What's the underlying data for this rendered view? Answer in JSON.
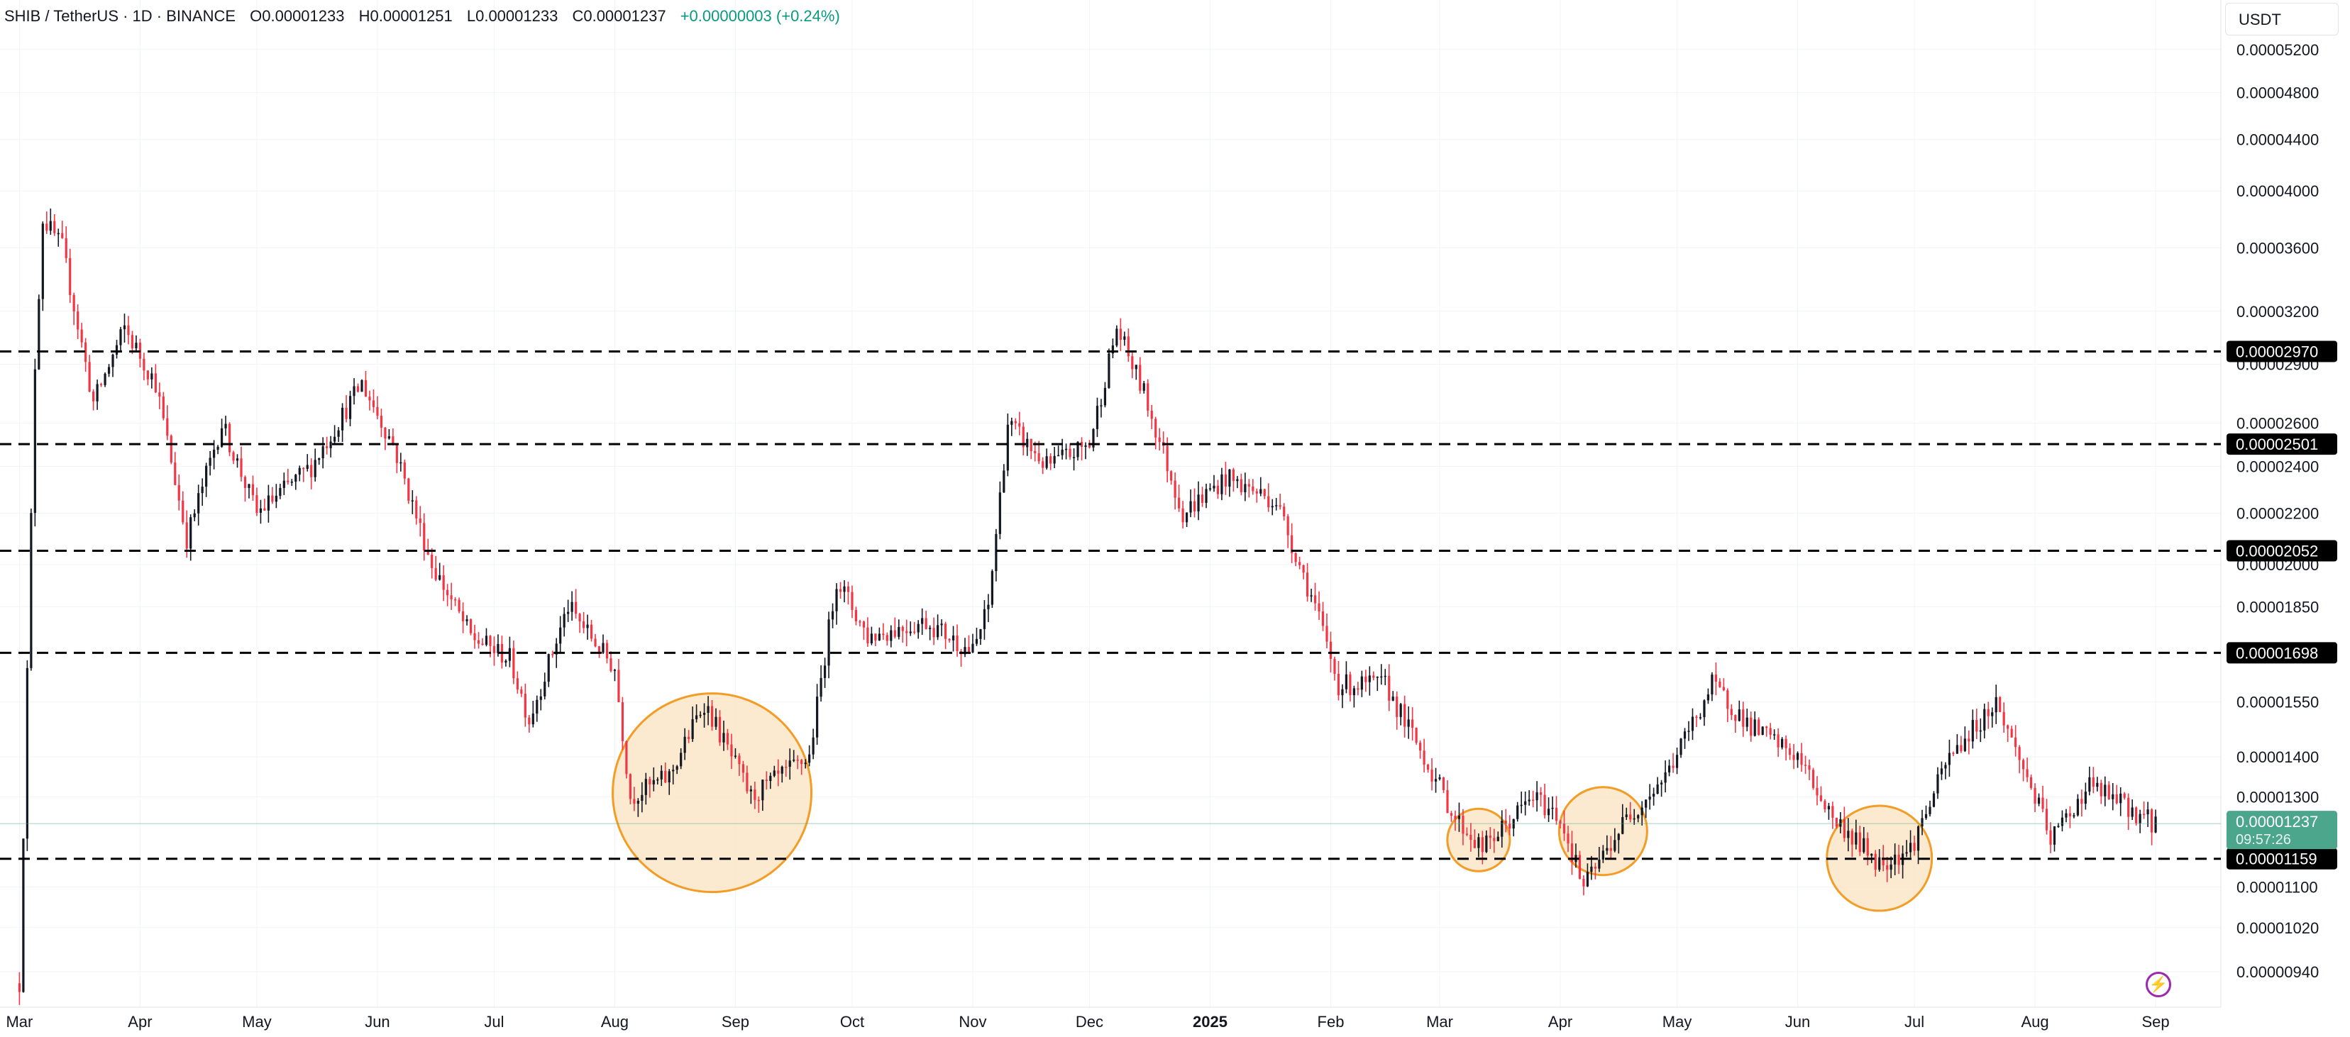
{
  "header": {
    "symbol": "SHIB / TetherUS · 1D · BINANCE",
    "open": "O0.00001233",
    "high": "H0.00001251",
    "low": "L0.00001233",
    "close": "C0.00001237",
    "change": "+0.00000003 (+0.24%)"
  },
  "scale_unit": "USDT",
  "icons": {
    "replay": "lightning-icon"
  },
  "colors": {
    "up": "#089981",
    "down": "#f23645",
    "candle": "#131722",
    "level_line": "#000000",
    "circle_stroke": "#f39c26",
    "circle_fill": "#fbe3c0",
    "last_price_bg": "#4ba68b"
  },
  "chart_data": {
    "type": "candlestick",
    "scale": "log",
    "ylim": [
      8.8e-06,
      5.7e-05
    ],
    "x_ticks": [
      "Mar",
      "Apr",
      "May",
      "Jun",
      "Jul",
      "Aug",
      "Sep",
      "Oct",
      "Nov",
      "Dec",
      "2025",
      "Feb",
      "Mar",
      "Apr",
      "May",
      "Jun",
      "Jul",
      "Aug",
      "Sep"
    ],
    "y_ticks": [
      "0.00005200",
      "0.00004800",
      "0.00004400",
      "0.00004000",
      "0.00003600",
      "0.00003200",
      "0.00002900",
      "0.00002600",
      "0.00002400",
      "0.00002200",
      "0.00002000",
      "0.00001850",
      "0.00001550",
      "0.00001400",
      "0.00001300",
      "0.00001100",
      "0.00001020",
      "0.00000940"
    ],
    "horizontal_levels": [
      {
        "value": 2.97e-05,
        "label": "0.00002970"
      },
      {
        "value": 2.501e-05,
        "label": "0.00002501"
      },
      {
        "value": 2.052e-05,
        "label": "0.00002052"
      },
      {
        "value": 1.698e-05,
        "label": "0.00001698"
      },
      {
        "value": 1.159e-05,
        "label": "0.00001159"
      }
    ],
    "last_price": {
      "value": 1.237e-05,
      "label": "0.00001237",
      "countdown": "09:57:26"
    },
    "highlight_circles": [
      {
        "date": "Aug 2024",
        "center_value": 1.31e-05
      },
      {
        "date": "Mar 2025",
        "center_value": 1.2e-05
      },
      {
        "date": "Apr 2025",
        "center_value": 1.22e-05
      },
      {
        "date": "Jun 2025",
        "center_value": 1.16e-05
      }
    ],
    "price_path": [
      [
        "2024-03-01",
        9.2e-06
      ],
      [
        "2024-03-05",
        2.9e-05
      ],
      [
        "2024-03-07",
        3.8e-05
      ],
      [
        "2024-03-12",
        3.6e-05
      ],
      [
        "2024-03-20",
        2.7e-05
      ],
      [
        "2024-03-28",
        3.1e-05
      ],
      [
        "2024-04-05",
        2.8e-05
      ],
      [
        "2024-04-13",
        2.1e-05
      ],
      [
        "2024-04-22",
        2.6e-05
      ],
      [
        "2024-05-01",
        2.2e-05
      ],
      [
        "2024-05-15",
        2.4e-05
      ],
      [
        "2024-05-28",
        2.8e-05
      ],
      [
        "2024-06-05",
        2.5e-05
      ],
      [
        "2024-06-15",
        2e-05
      ],
      [
        "2024-06-25",
        1.75e-05
      ],
      [
        "2024-07-05",
        1.68e-05
      ],
      [
        "2024-07-10",
        1.5e-05
      ],
      [
        "2024-07-20",
        1.85e-05
      ],
      [
        "2024-08-01",
        1.65e-05
      ],
      [
        "2024-08-05",
        1.3e-05
      ],
      [
        "2024-08-15",
        1.35e-05
      ],
      [
        "2024-08-24",
        1.55e-05
      ],
      [
        "2024-09-05",
        1.3e-05
      ],
      [
        "2024-09-20",
        1.4e-05
      ],
      [
        "2024-09-27",
        1.95e-05
      ],
      [
        "2024-10-05",
        1.75e-05
      ],
      [
        "2024-10-20",
        1.8e-05
      ],
      [
        "2024-11-01",
        1.7e-05
      ],
      [
        "2024-11-05",
        1.85e-05
      ],
      [
        "2024-11-10",
        2.6e-05
      ],
      [
        "2024-11-20",
        2.4e-05
      ],
      [
        "2024-12-01",
        2.5e-05
      ],
      [
        "2024-12-08",
        3.1e-05
      ],
      [
        "2024-12-15",
        2.75e-05
      ],
      [
        "2024-12-25",
        2.2e-05
      ],
      [
        "2025-01-05",
        2.35e-05
      ],
      [
        "2025-01-18",
        2.25e-05
      ],
      [
        "2025-01-28",
        1.85e-05
      ],
      [
        "2025-02-03",
        1.6e-05
      ],
      [
        "2025-02-15",
        1.6e-05
      ],
      [
        "2025-02-25",
        1.4e-05
      ],
      [
        "2025-03-05",
        1.25e-05
      ],
      [
        "2025-03-12",
        1.18e-05
      ],
      [
        "2025-03-25",
        1.3e-05
      ],
      [
        "2025-04-01",
        1.25e-05
      ],
      [
        "2025-04-07",
        1.1e-05
      ],
      [
        "2025-04-18",
        1.25e-05
      ],
      [
        "2025-04-28",
        1.35e-05
      ],
      [
        "2025-05-10",
        1.6e-05
      ],
      [
        "2025-05-20",
        1.48e-05
      ],
      [
        "2025-06-01",
        1.4e-05
      ],
      [
        "2025-06-10",
        1.25e-05
      ],
      [
        "2025-06-22",
        1.15e-05
      ],
      [
        "2025-06-30",
        1.18e-05
      ],
      [
        "2025-07-10",
        1.4e-05
      ],
      [
        "2025-07-22",
        1.55e-05
      ],
      [
        "2025-08-01",
        1.3e-05
      ],
      [
        "2025-08-05",
        1.2e-05
      ],
      [
        "2025-08-15",
        1.33e-05
      ],
      [
        "2025-08-31",
        1.24e-05
      ],
      [
        "2025-09-01",
        1.24e-05
      ]
    ]
  }
}
